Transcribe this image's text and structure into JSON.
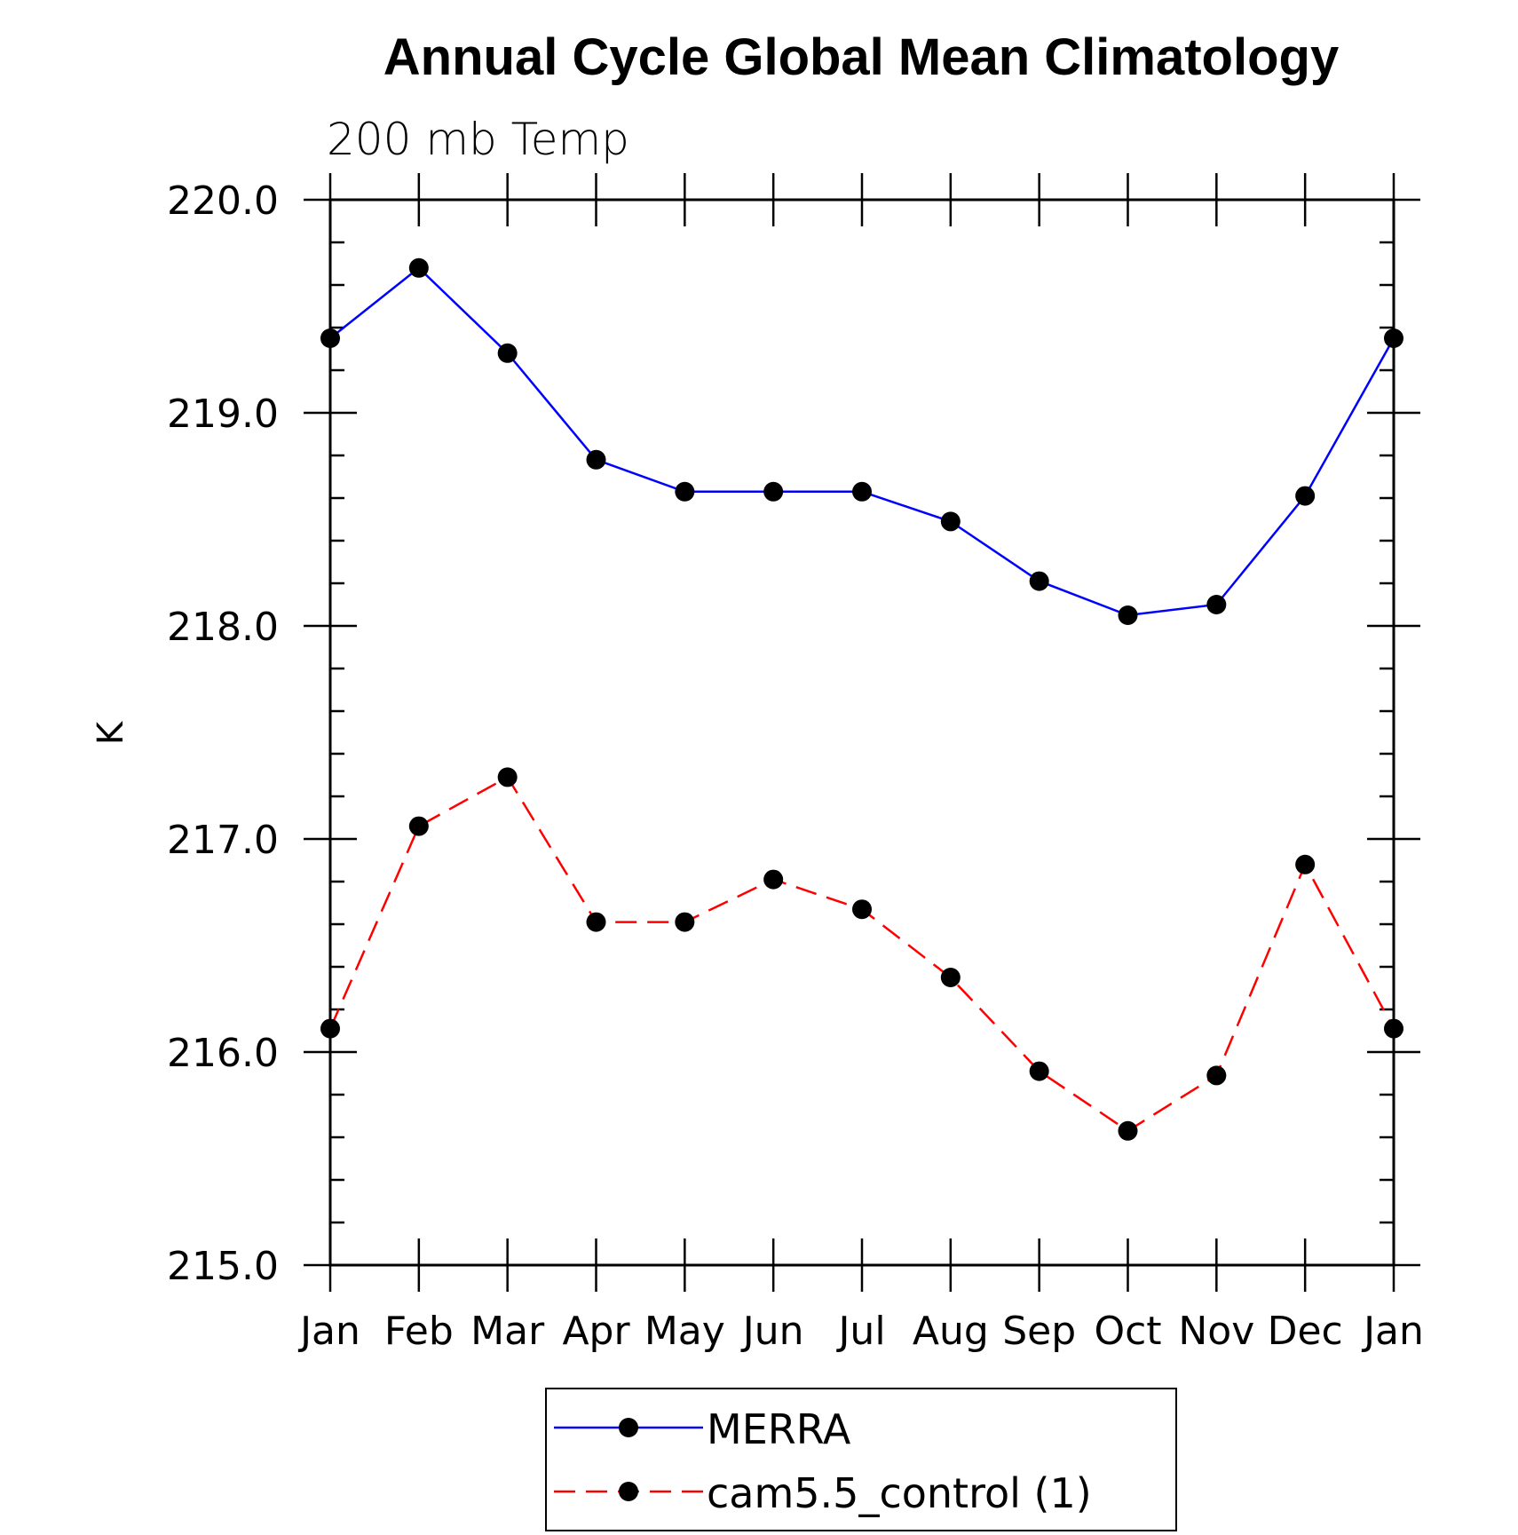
{
  "chart_data": {
    "type": "line",
    "title": "Annual Cycle Global Mean Climatology",
    "subtitle": "200 mb Temp",
    "ylabel": "K",
    "xlabel": "",
    "categories": [
      "Jan",
      "Feb",
      "Mar",
      "Apr",
      "May",
      "Jun",
      "Jul",
      "Aug",
      "Sep",
      "Oct",
      "Nov",
      "Dec",
      "Jan"
    ],
    "ylim": [
      215.0,
      220.0
    ],
    "yticks": [
      "215.0",
      "216.0",
      "217.0",
      "218.0",
      "219.0",
      "220.0"
    ],
    "y_minor_step": 0.2,
    "series": [
      {
        "name": "MERRA",
        "color": "#0000ff",
        "dash": "solid",
        "marker": "filled-circle",
        "values": [
          219.35,
          219.68,
          219.28,
          218.78,
          218.63,
          218.63,
          218.63,
          218.49,
          218.21,
          218.05,
          218.1,
          218.61,
          219.35
        ]
      },
      {
        "name": "cam5.5_control (1)",
        "color": "#ff0000",
        "dash": "dashed",
        "marker": "filled-circle",
        "values": [
          216.11,
          217.06,
          217.29,
          216.61,
          216.61,
          216.81,
          216.67,
          216.35,
          215.91,
          215.63,
          215.89,
          216.88,
          216.11
        ]
      }
    ],
    "legend": {
      "position": "bottom-center"
    },
    "grid": false
  }
}
